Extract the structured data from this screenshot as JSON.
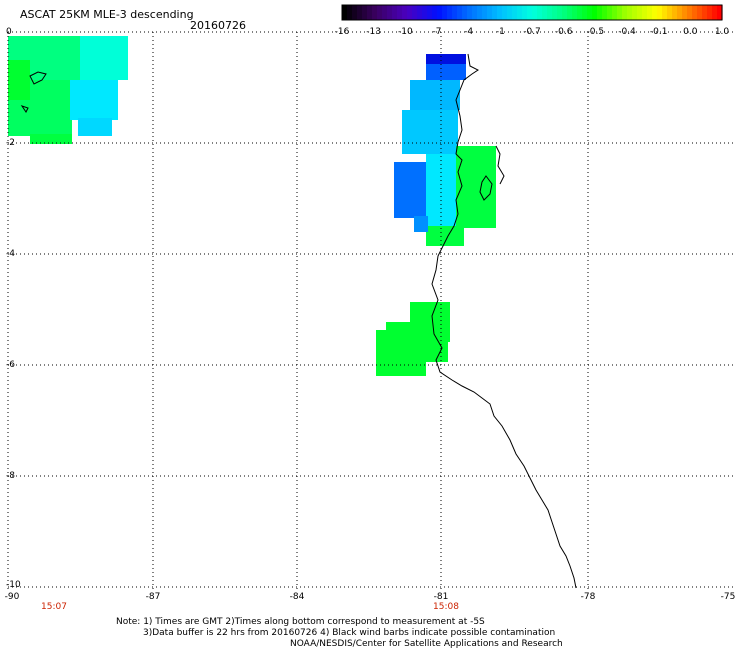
{
  "header": {
    "title": "ASCAT 25KM MLE-3 descending",
    "date": "20160726"
  },
  "colorbar": {
    "labels": [
      "-16",
      "-13",
      "-10",
      "-7",
      "-4",
      "-1",
      "-0.7",
      "-0.6",
      "-0.5",
      "-0.4",
      "-0.1",
      "0.0",
      "1.0"
    ],
    "colors": [
      "#000000",
      "#3a0060",
      "#4a00c0",
      "#0010ff",
      "#0070ff",
      "#00c0ff",
      "#00ffe0",
      "#00ff80",
      "#00ff00",
      "#a0ff00",
      "#ffff00",
      "#ff8000",
      "#ff0000"
    ]
  },
  "axes": {
    "lat_labels": [
      "0",
      "-2",
      "-4",
      "-6",
      "-8",
      "-10"
    ],
    "lon_labels": [
      "-90",
      "-87",
      "-84",
      "-81",
      "-78",
      "-75"
    ],
    "time_labels": [
      "15:07",
      "15:08"
    ]
  },
  "notes": {
    "line1": "Note: 1) Times are GMT 2)Times along bottom correspond to measurement at -5S",
    "line2": "3)Data buffer is 22 hrs from 20160726 4) Black wind barbs indicate possible contamination",
    "line3": "NOAA/NESDIS/Center for Satellite Applications and Research"
  }
}
